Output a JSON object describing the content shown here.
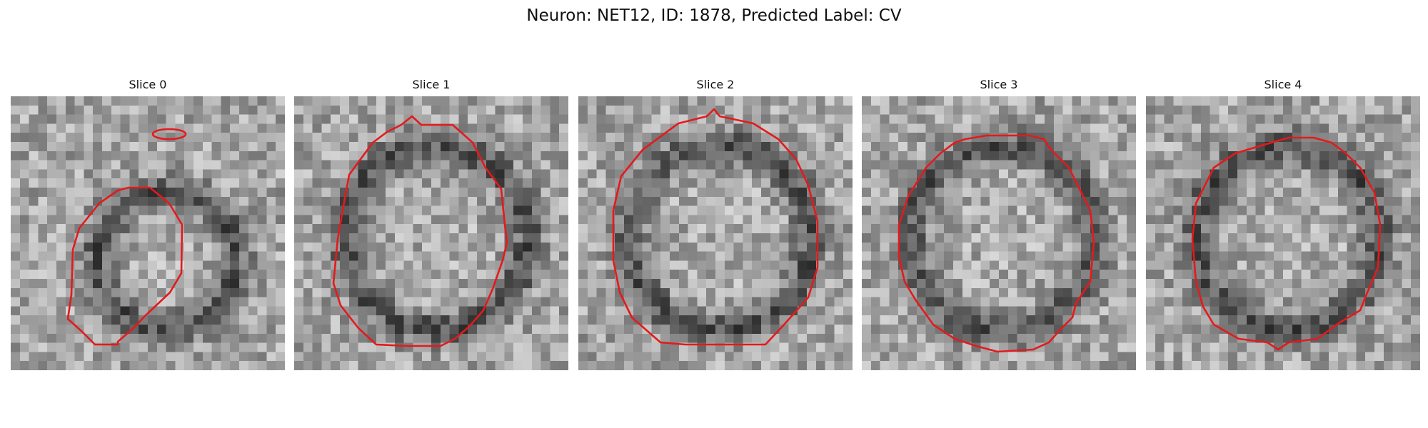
{
  "figure": {
    "title": "Neuron: NET12, ID: 1878, Predicted Label: CV",
    "contour_color": "#e41a1c"
  },
  "panels": [
    {
      "title": "Slice 0",
      "texture_seed": 11
    },
    {
      "title": "Slice 1",
      "texture_seed": 23
    },
    {
      "title": "Slice 2",
      "texture_seed": 37
    },
    {
      "title": "Slice 3",
      "texture_seed": 41
    },
    {
      "title": "Slice 4",
      "texture_seed": 59
    }
  ]
}
